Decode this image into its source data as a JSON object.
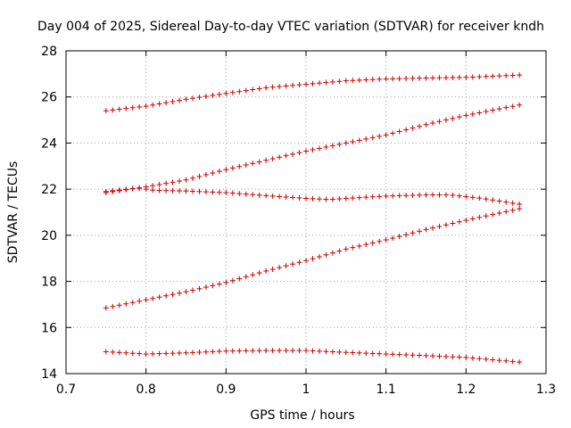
{
  "chart_data": {
    "type": "scatter",
    "title": "Day 004 of 2025, Sidereal Day-to-day VTEC variation (SDTVAR) for receiver kndh",
    "xlabel": "GPS time / hours",
    "ylabel": "SDTVAR / TECUs",
    "xlim": [
      0.7,
      1.3
    ],
    "ylim": [
      14,
      28
    ],
    "xticks": [
      "0.7",
      "0.8",
      "0.9",
      "1",
      "1.1",
      "1.2",
      "1.3"
    ],
    "yticks": [
      "14",
      "16",
      "18",
      "20",
      "22",
      "24",
      "26",
      "28"
    ],
    "grid": true,
    "marker": "plus",
    "color": "#cc0000",
    "x_start": 0.75,
    "x_end": 1.2667,
    "points_per_series": 63,
    "series": [
      {
        "name": "series-1",
        "knots": [
          [
            0.75,
            25.4
          ],
          [
            0.8,
            25.6
          ],
          [
            0.85,
            25.9
          ],
          [
            0.9,
            26.15
          ],
          [
            0.95,
            26.4
          ],
          [
            1.0,
            26.55
          ],
          [
            1.05,
            26.7
          ],
          [
            1.1,
            26.78
          ],
          [
            1.15,
            26.82
          ],
          [
            1.2,
            26.85
          ],
          [
            1.2667,
            26.95
          ]
        ]
      },
      {
        "name": "series-2",
        "knots": [
          [
            0.75,
            21.85
          ],
          [
            0.8,
            22.1
          ],
          [
            0.85,
            22.4
          ],
          [
            0.9,
            22.85
          ],
          [
            0.95,
            23.25
          ],
          [
            1.0,
            23.65
          ],
          [
            1.05,
            24.0
          ],
          [
            1.1,
            24.35
          ],
          [
            1.15,
            24.8
          ],
          [
            1.2,
            25.2
          ],
          [
            1.2667,
            25.65
          ]
        ]
      },
      {
        "name": "series-3",
        "knots": [
          [
            0.75,
            21.9
          ],
          [
            0.79,
            22.05
          ],
          [
            0.81,
            21.95
          ],
          [
            0.85,
            21.92
          ],
          [
            0.9,
            21.85
          ],
          [
            0.95,
            21.72
          ],
          [
            1.0,
            21.6
          ],
          [
            1.03,
            21.55
          ],
          [
            1.05,
            21.6
          ],
          [
            1.1,
            21.7
          ],
          [
            1.15,
            21.75
          ],
          [
            1.18,
            21.75
          ],
          [
            1.22,
            21.6
          ],
          [
            1.2667,
            21.35
          ]
        ]
      },
      {
        "name": "series-4",
        "knots": [
          [
            0.75,
            16.85
          ],
          [
            0.8,
            17.2
          ],
          [
            0.85,
            17.55
          ],
          [
            0.9,
            17.95
          ],
          [
            0.95,
            18.45
          ],
          [
            1.0,
            18.9
          ],
          [
            1.05,
            19.4
          ],
          [
            1.1,
            19.8
          ],
          [
            1.15,
            20.25
          ],
          [
            1.2,
            20.65
          ],
          [
            1.2667,
            21.15
          ]
        ]
      },
      {
        "name": "series-5",
        "knots": [
          [
            0.75,
            14.95
          ],
          [
            0.8,
            14.85
          ],
          [
            0.85,
            14.9
          ],
          [
            0.9,
            14.98
          ],
          [
            0.95,
            15.0
          ],
          [
            1.0,
            15.0
          ],
          [
            1.05,
            14.92
          ],
          [
            1.1,
            14.85
          ],
          [
            1.15,
            14.78
          ],
          [
            1.2,
            14.7
          ],
          [
            1.2667,
            14.5
          ]
        ]
      }
    ]
  }
}
